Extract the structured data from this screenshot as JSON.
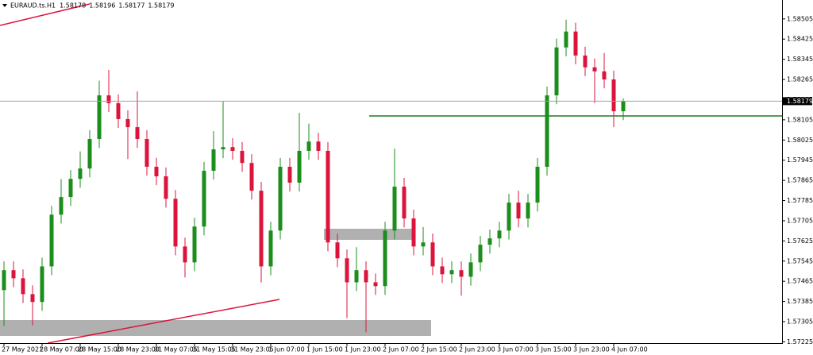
{
  "chart_data": {
    "type": "candlestick",
    "title": "EURAUD.ts.H1",
    "title_values": [
      1.58178,
      1.58196,
      1.58177,
      1.58179
    ],
    "categories": [
      "27 May 2021",
      null,
      null,
      null,
      "28 May 07:00",
      null,
      null,
      null,
      "28 May 15:00",
      null,
      null,
      null,
      "28 May 23:00",
      null,
      null,
      null,
      "31 May 07:05",
      null,
      null,
      null,
      "31 May 15:05",
      null,
      null,
      null,
      "31 May 23:05",
      null,
      null,
      null,
      "1 Jun 07:00",
      null,
      null,
      null,
      "1 Jun 15:00",
      null,
      null,
      null,
      "1 Jun 23:00",
      null,
      null,
      null,
      "2 Jun 07:00",
      null,
      null,
      null,
      "2 Jun 15:00",
      null,
      null,
      null,
      "2 Jun 23:00",
      null,
      null,
      null,
      "3 Jun 07:00",
      null,
      null,
      null,
      "3 Jun 15:00",
      null,
      null,
      null,
      "3 Jun 23:00",
      null,
      null,
      null,
      "4 Jun 07:00",
      null
    ],
    "open": [
      1.5743,
      1.57509,
      1.57477,
      1.57414,
      1.57383,
      1.57524,
      1.57729,
      1.57799,
      1.57871,
      1.57912,
      1.58029,
      1.58202,
      1.58171,
      1.58108,
      1.58076,
      1.58029,
      1.57919,
      1.57881,
      1.57792,
      1.57603,
      1.5754,
      1.57682,
      1.57903,
      1.57988,
      1.57997,
      1.57982,
      1.57934,
      1.57824,
      1.57524,
      1.57666,
      1.57919,
      1.57856,
      1.57982,
      1.58019,
      1.57982,
      1.57619,
      1.57556,
      1.57461,
      1.57509,
      1.57461,
      1.57446,
      1.57666,
      1.5784,
      1.57714,
      1.57603,
      1.57619,
      1.57524,
      1.57493,
      1.57509,
      1.57483,
      1.5754,
      1.5761,
      1.57635,
      1.57666,
      1.57777,
      1.57714,
      1.57777,
      1.57919,
      1.58202,
      1.58392,
      1.58455,
      1.5836,
      1.58313,
      1.58297,
      1.58265,
      1.58139
    ],
    "high": [
      1.57544,
      1.57544,
      1.57512,
      1.57449,
      1.57559,
      1.57764,
      1.5787,
      1.57906,
      1.5798,
      1.58064,
      1.5826,
      1.58303,
      1.58206,
      1.58143,
      1.58218,
      1.58064,
      1.57954,
      1.57916,
      1.57827,
      1.57638,
      1.57717,
      1.57938,
      1.5806,
      1.58177,
      1.58032,
      1.58017,
      1.57969,
      1.57859,
      1.57701,
      1.57954,
      1.57954,
      1.58133,
      1.5809,
      1.58054,
      1.58017,
      1.57654,
      1.57591,
      1.576,
      1.57544,
      1.57496,
      1.57701,
      1.57991,
      1.57875,
      1.57749,
      1.5768,
      1.57654,
      1.57559,
      1.57544,
      1.57544,
      1.57575,
      1.57645,
      1.5767,
      1.57701,
      1.57812,
      1.57824,
      1.57812,
      1.57954,
      1.58237,
      1.58427,
      1.58502,
      1.5849,
      1.58395,
      1.58348,
      1.5837,
      1.583,
      1.5819
    ],
    "low": [
      1.57288,
      1.57442,
      1.57379,
      1.5729,
      1.57348,
      1.57489,
      1.57694,
      1.57764,
      1.57836,
      1.57877,
      1.57994,
      1.58136,
      1.58073,
      1.5795,
      1.57994,
      1.57884,
      1.57846,
      1.57757,
      1.57568,
      1.5748,
      1.57505,
      1.57647,
      1.57868,
      1.57953,
      1.57947,
      1.57899,
      1.57789,
      1.5746,
      1.57489,
      1.57631,
      1.57821,
      1.57821,
      1.57947,
      1.57947,
      1.57584,
      1.57521,
      1.57319,
      1.57426,
      1.57263,
      1.57411,
      1.57411,
      1.57631,
      1.57679,
      1.57568,
      1.57568,
      1.57489,
      1.57458,
      1.57458,
      1.57408,
      1.57448,
      1.57505,
      1.57575,
      1.576,
      1.57631,
      1.57679,
      1.57679,
      1.57742,
      1.57884,
      1.58167,
      1.58357,
      1.58325,
      1.58278,
      1.58171,
      1.5823,
      1.58076,
      1.58104
    ],
    "close": [
      1.57509,
      1.57477,
      1.57414,
      1.57383,
      1.57524,
      1.57729,
      1.57799,
      1.57871,
      1.57912,
      1.58029,
      1.58202,
      1.58171,
      1.58108,
      1.58076,
      1.58029,
      1.57919,
      1.57881,
      1.57792,
      1.57603,
      1.5754,
      1.57682,
      1.57903,
      1.57988,
      1.57997,
      1.57982,
      1.57934,
      1.57824,
      1.57524,
      1.57666,
      1.57919,
      1.57856,
      1.57982,
      1.58019,
      1.57982,
      1.57619,
      1.57556,
      1.57461,
      1.57509,
      1.57461,
      1.57446,
      1.57666,
      1.5784,
      1.57714,
      1.57603,
      1.57619,
      1.57524,
      1.57493,
      1.57509,
      1.57483,
      1.5754,
      1.5761,
      1.57635,
      1.57666,
      1.57777,
      1.57714,
      1.57777,
      1.57919,
      1.58202,
      1.58392,
      1.58455,
      1.5836,
      1.58313,
      1.58297,
      1.58265,
      1.58139,
      1.58179
    ],
    "ylim": [
      1.5722,
      1.5858
    ],
    "yticks": [
      1.58505,
      1.58425,
      1.58345,
      1.58265,
      1.58185,
      1.58105,
      1.58025,
      1.57945,
      1.57865,
      1.57785,
      1.57705,
      1.57625,
      1.57545,
      1.57465,
      1.57385,
      1.57305,
      1.57225
    ],
    "last_price": 1.58179,
    "bull_color": "#1b8e1b",
    "bear_color": "#dc143c"
  }
}
